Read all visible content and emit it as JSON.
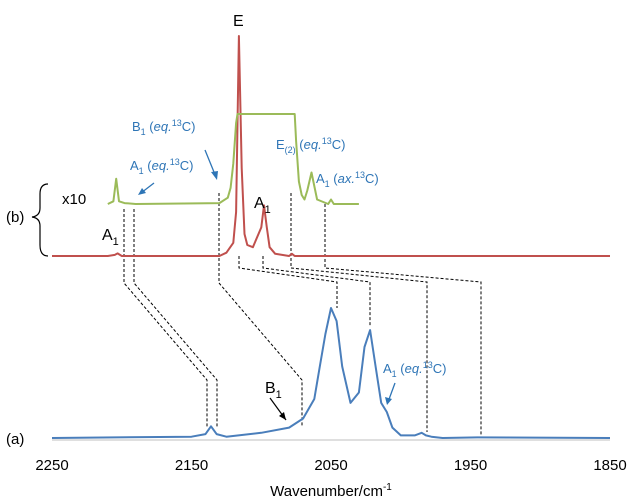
{
  "chart_data": {
    "type": "line",
    "title": "",
    "xlabel": "Wavenumber/cm",
    "xlabel_sup": "-1",
    "xlim": [
      2250,
      1850
    ],
    "x_reversed": true,
    "xticks": [
      2250,
      2150,
      2050,
      1950,
      1850
    ],
    "x_tick_labels": [
      "2250",
      "2150",
      "2050",
      "1950",
      "1850"
    ],
    "grid": false,
    "series": [
      {
        "name": "",
        "color": "#4a7ebb",
        "x": [
          2250,
          2150,
          2140,
          2136,
          2132,
          2125,
          2100,
          2080,
          2070,
          2062,
          2058,
          2054,
          2050,
          2046,
          2042,
          2036,
          2030,
          2026,
          2022,
          2018,
          2014,
          2010,
          2006,
          2000,
          1990,
          1985,
          1982,
          1978,
          1970,
          1945,
          1850
        ],
        "y": [
          0,
          0.01,
          0.03,
          0.09,
          0.03,
          0.01,
          0.04,
          0.08,
          0.15,
          0.3,
          0.55,
          0.8,
          1.0,
          0.9,
          0.55,
          0.27,
          0.35,
          0.7,
          0.83,
          0.55,
          0.27,
          0.2,
          0.08,
          0.02,
          0.02,
          0.04,
          0.02,
          0.01,
          0.0,
          0.005,
          0
        ]
      },
      {
        "name": "",
        "color": "#c0504d",
        "x": [
          2250,
          2210,
          2205,
          2203,
          2200,
          2130,
          2125,
          2120,
          2118,
          2116,
          2114,
          2112,
          2110,
          2106,
          2100,
          2098,
          2096,
          2094,
          2090,
          2080,
          2078,
          2076,
          2070,
          1850
        ],
        "y": [
          0,
          0,
          0.005,
          0.012,
          0.0,
          0.0,
          0.015,
          0.06,
          0.2,
          1.0,
          0.4,
          0.1,
          0.05,
          0.04,
          0.13,
          0.23,
          0.13,
          0.04,
          0.01,
          0.0,
          0.01,
          0.0,
          0.0,
          0
        ]
      },
      {
        "name": "",
        "color": "#9bbb59",
        "x": [
          2210,
          2206,
          2204,
          2202,
          2198,
          2190,
          2130,
          2124,
          2122,
          2120,
          2118,
          2117,
          2076,
          2075,
          2073,
          2071,
          2069,
          2067,
          2064,
          2060,
          2052,
          2050,
          2048,
          2040,
          2030
        ],
        "y": [
          0,
          0.03,
          0.28,
          0.03,
          0.01,
          0.0,
          0.01,
          0.07,
          0.18,
          0.45,
          0.9,
          1.0,
          1.0,
          0.7,
          0.25,
          0.1,
          0.05,
          0.15,
          0.35,
          0.05,
          0.0,
          0.05,
          0.0,
          0.0,
          0.0
        ]
      }
    ],
    "annotations": {
      "label_a": "(a)",
      "label_b": "(b)",
      "x10": "x10",
      "E_top": "E",
      "A1_red": "A",
      "A1_red_sub": "1",
      "A1_left": "A",
      "A1_left_sub": "1",
      "B1_blue": "B",
      "B1_blue_sub": "1",
      "B1_eq_main": "B",
      "B1_eq_sub": "1",
      "B1_eq_rest_a": " (",
      "B1_eq_it": "eq.",
      "B1_eq_sup": "13",
      "B1_eq_end": "C)",
      "A1_eq_main": "A",
      "A1_eq_sub": "1",
      "A1_eq_rest_a": " (",
      "A1_eq_it": "eq.",
      "A1_eq_sup": "13",
      "A1_eq_end": "C)",
      "E2_eq_main": "E",
      "E2_eq_sub": "(2)",
      "E2_eq_rest_a": " (",
      "E2_eq_it": "eq.",
      "E2_eq_sup": "13",
      "E2_eq_end": "C)",
      "A1_ax_main": "A",
      "A1_ax_sub": "1",
      "A1_ax_rest_a": " (",
      "A1_ax_it": "ax.",
      "A1_ax_sup": "13",
      "A1_ax_end": "C)",
      "A1_eq_bottom_main": "A",
      "A1_eq_bottom_sub": "1",
      "A1_eq_bottom_rest_a": " (",
      "A1_eq_bottom_it": "eq.",
      "A1_eq_bottom_sup": "13",
      "A1_eq_bottom_end": "C)",
      "annotation_color": "#2e75b6"
    }
  }
}
